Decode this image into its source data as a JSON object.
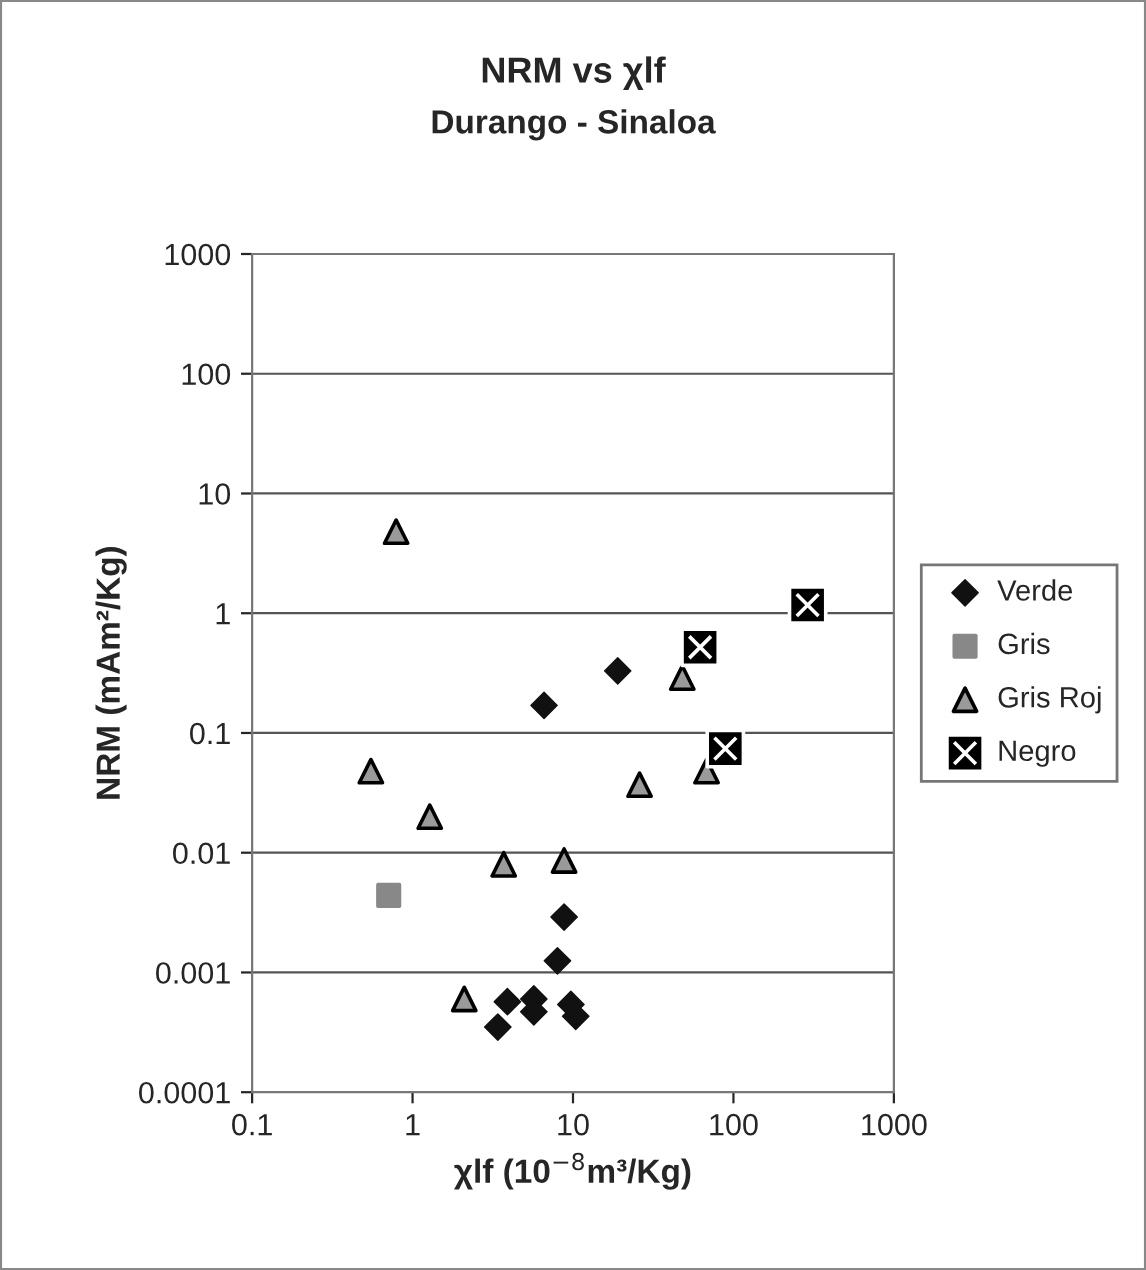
{
  "chart_data": {
    "type": "scatter",
    "title": "NRM vs χlf",
    "subtitle": "Durango - Sinaloa",
    "xlabel": "χlf (10$^{−8}$m³/Kg)",
    "ylabel": "NRM (mAm²/Kg)",
    "log": "xy",
    "xlim": [
      0.1,
      1000
    ],
    "ylim": [
      0.0001,
      1000
    ],
    "xticks": [
      0.1,
      1,
      10,
      100,
      1000
    ],
    "yticks": [
      0.0001,
      0.001,
      0.01,
      0.1,
      1,
      10,
      100,
      1000
    ],
    "grid": "y",
    "legend": "right",
    "series": [
      {
        "name": "Verde",
        "color": "#111111",
        "marker": "diamond",
        "x": [
          6.6,
          19,
          8.8,
          8.0,
          3.9,
          5.7,
          5.7,
          9.7,
          10.4,
          3.4
        ],
        "values": [
          0.17,
          0.33,
          0.0029,
          0.00125,
          0.00057,
          0.0006,
          0.00047,
          0.00054,
          0.00043,
          0.00035
        ]
      },
      {
        "name": "Gris",
        "color": "#888888",
        "marker": "square",
        "x": [
          0.71
        ],
        "values": [
          0.0044
        ]
      },
      {
        "name": "Gris Roj",
        "color": "#9a9a9a",
        "marker": "triangle",
        "x": [
          0.79,
          48,
          0.55,
          1.28,
          3.7,
          8.8,
          2.1,
          26,
          68
        ],
        "values": [
          4.8,
          0.29,
          0.048,
          0.02,
          0.008,
          0.0086,
          0.0006,
          0.037,
          0.048
        ]
      },
      {
        "name": "Negro",
        "color": "#000000",
        "marker": "cross",
        "x": [
          290,
          62,
          89
        ],
        "values": [
          1.17,
          0.52,
          0.074
        ]
      }
    ]
  }
}
